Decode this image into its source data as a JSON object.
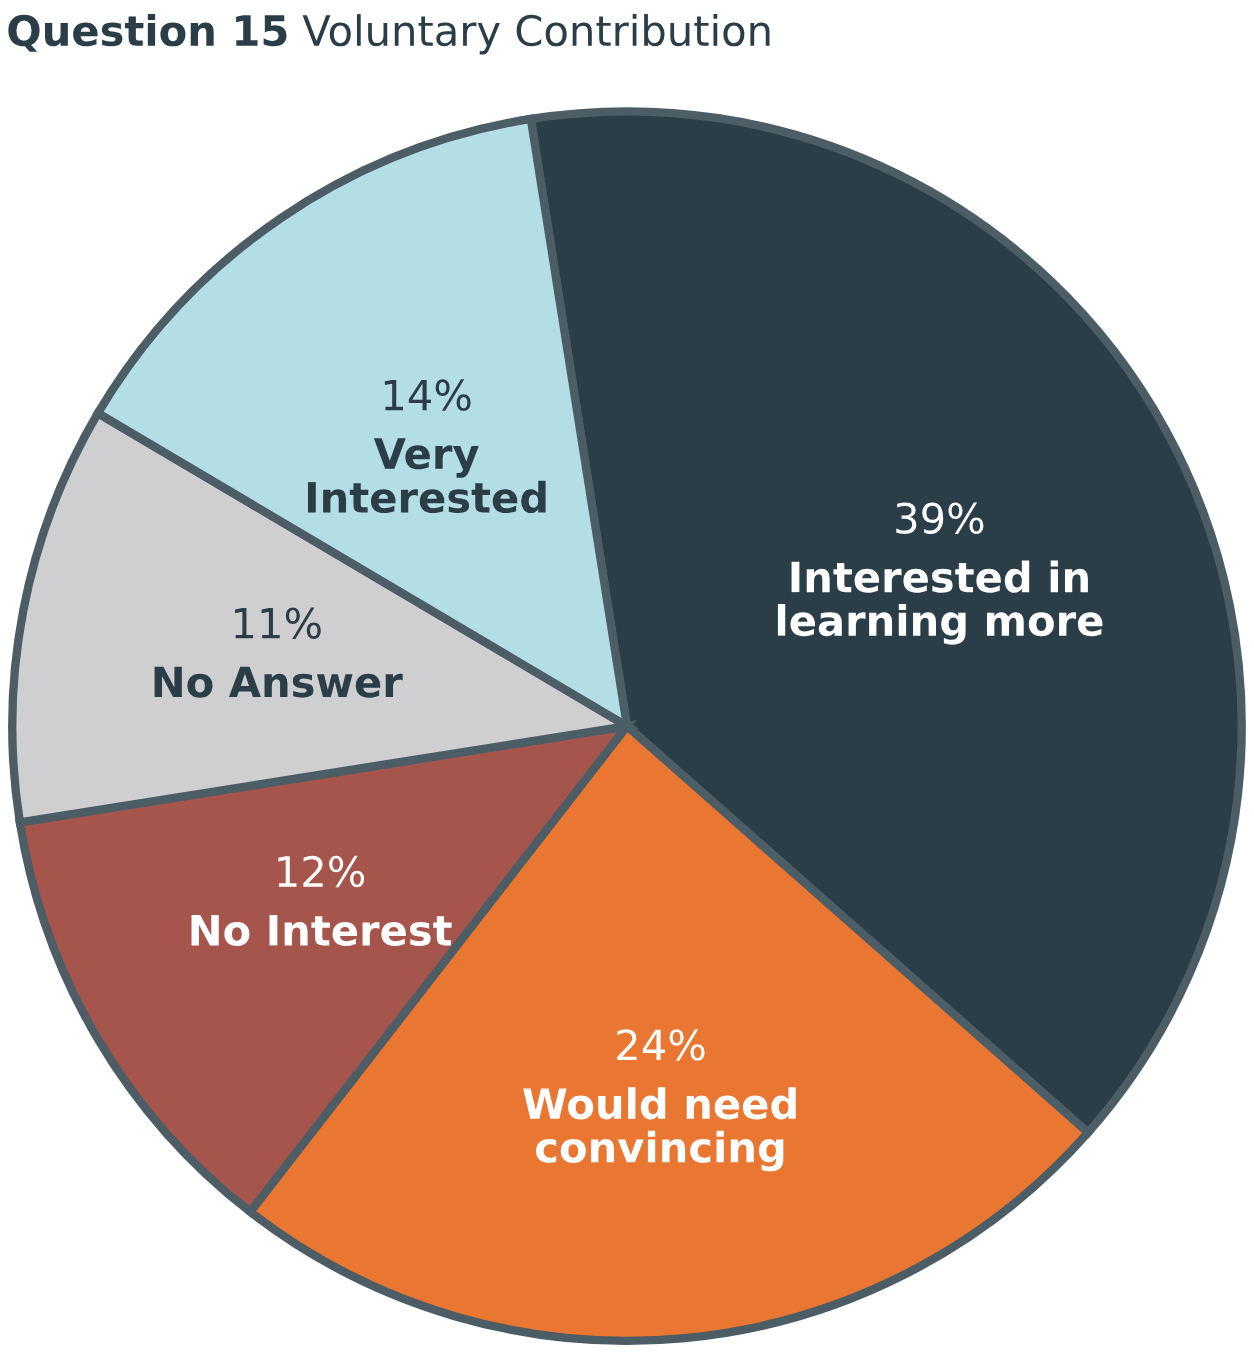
{
  "chart_data": {
    "type": "pie",
    "title": "Question 15",
    "subtitle": "Voluntary Contribution",
    "categories": [
      "Interested in\nlearning more",
      "Would need\nconvincing",
      "No Interest",
      "No Answer",
      "Very\nInterested"
    ],
    "values": [
      39,
      24,
      12,
      11,
      14
    ],
    "value_labels": [
      "39%",
      "24%",
      "12%",
      "11%",
      "14%"
    ],
    "colors": [
      "#2b3d47",
      "#e97731",
      "#a6554c",
      "#cfcfd1",
      "#b3dee6"
    ]
  }
}
